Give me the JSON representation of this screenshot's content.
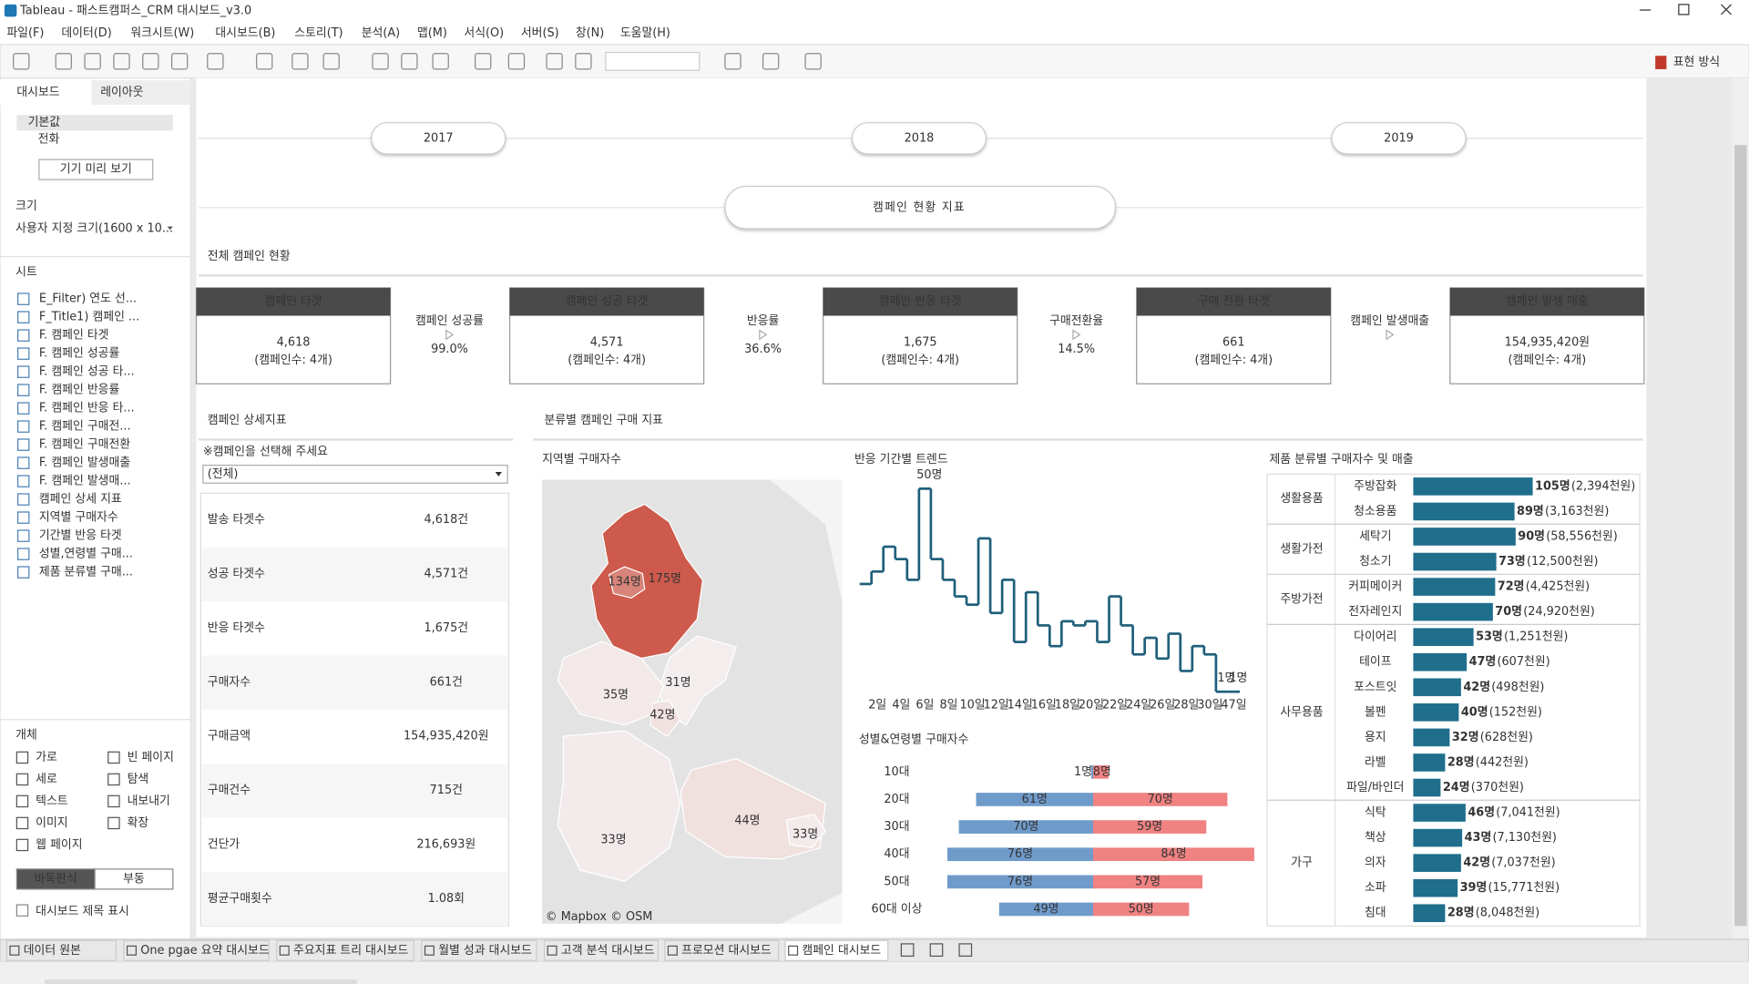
{
  "window": {
    "title": "Tableau - 패스트캠퍼스_CRM 대시보드_v3.0"
  },
  "menu": [
    "파일(F)",
    "데이터(D)",
    "워크시트(W)",
    "대시보드(B)",
    "스토리(T)",
    "분석(A)",
    "맵(M)",
    "서식(O)",
    "서버(S)",
    "창(N)",
    "도움말(H)"
  ],
  "toolbar": {
    "show_me": "표현 방식"
  },
  "sidebar": {
    "tabs": [
      "대시보드",
      "레이아웃"
    ],
    "devices": [
      "기본값",
      "전화"
    ],
    "preview_button": "기기 미리 보기",
    "size_label": "크기",
    "size_value": "사용자 지정 크기(1600 x 10...",
    "sheets_label": "시트",
    "sheets": [
      "E_Filter) 연도 선...",
      "F_Title1) 캠페인 ...",
      "F. 캠페인 타겟",
      "F. 캠페인 성공률",
      "F. 캠페인 성공 타...",
      "F. 캠페인 반응률",
      "F. 캠페인 반응 타...",
      "F. 캠페인 구매전...",
      "F. 캠페인 구매전환",
      "F. 캠페인 발생매출",
      "F. 캠페인 발생매...",
      "캠페인 상세 지표",
      "지역별 구매자수",
      "기간별 반응 타겟",
      "성별,연령별 구매...",
      "제품 분류별 구매..."
    ],
    "objects_label": "개체",
    "objects": [
      "가로",
      "빈 페이지",
      "세로",
      "탐색",
      "텍스트",
      "내보내기",
      "이미지",
      "확장",
      "웹 페이지"
    ],
    "layout_modes": [
      "바둑판식",
      "부동"
    ],
    "show_title": "대시보드 제목 표시"
  },
  "dashboard": {
    "years": [
      "2017",
      "2018",
      "2019"
    ],
    "title": "캠페인 현황 지표",
    "overview_title": "전체 캠페인 현황",
    "kpis": [
      {
        "title": "캠페인 타겟",
        "value": "4,618",
        "note": "(캠페인수: 4개)"
      },
      {
        "title": "캠페인 성공 타겟",
        "value": "4,571",
        "note": "(캠페인수: 4개)"
      },
      {
        "title": "캠페인 반응 타겟",
        "value": "1,675",
        "note": "(캠페인수: 4개)"
      },
      {
        "title": "구매 전환 타겟",
        "value": "661",
        "note": "(캠페인수: 4개)"
      },
      {
        "title": "캠페인 발생 매출",
        "value": "154,935,420원",
        "note": "(캠페인수: 4개)"
      }
    ],
    "rates": [
      {
        "label": "캠페인 성공률",
        "value": "99.0%"
      },
      {
        "label": "반응률",
        "value": "36.6%"
      },
      {
        "label": "구매전환율",
        "value": "14.5%"
      },
      {
        "label": "캠페인 발생매출"
      }
    ],
    "detail_title": "캠페인 상세지표",
    "detail_prompt": "※캠페인을 선택해 주세요",
    "detail_filter": "(전체)",
    "detail_rows": [
      [
        "발송 타겟수",
        "4,618건"
      ],
      [
        "성공 타겟수",
        "4,571건"
      ],
      [
        "반응 타겟수",
        "1,675건"
      ],
      [
        "구매자수",
        "661건"
      ],
      [
        "구매금액",
        "154,935,420원"
      ],
      [
        "구매건수",
        "715건"
      ],
      [
        "건단가",
        "216,693원"
      ],
      [
        "평균구매횟수",
        "1.08회"
      ]
    ],
    "purchase_title": "분류별 캠페인 구매 지표"
  },
  "chart_data": [
    {
      "type": "map",
      "title": "지역별 구매자수",
      "values": [
        134,
        175,
        31,
        35,
        42,
        44,
        33,
        33
      ],
      "value_labels": [
        "134명",
        "175명",
        "31명",
        "35명",
        "42명",
        "44명",
        "33명",
        "33명"
      ],
      "colors": [
        "#f4eded",
        "#cd5a4c"
      ],
      "credit": "© Mapbox © OSM"
    },
    {
      "type": "line",
      "title": "반응 기간별 트렌드",
      "color": "#1f5f7a",
      "categories": [
        null,
        "2일",
        null,
        "4일",
        null,
        "6일",
        null,
        "8일",
        null,
        "10일",
        null,
        "12일",
        null,
        "14일",
        null,
        "16일",
        null,
        "18일",
        null,
        "20일",
        null,
        "22일",
        null,
        "24일",
        null,
        "26일",
        null,
        "28일",
        null,
        "30일",
        null,
        "47일"
      ],
      "values": [
        27,
        30,
        36,
        33,
        28,
        50,
        33,
        28,
        24,
        22,
        38,
        20,
        28,
        13,
        25,
        17,
        12,
        18,
        17,
        18,
        13,
        24,
        17,
        10,
        14,
        9,
        15,
        6,
        12,
        10,
        1,
        1
      ],
      "value_labels": [
        null,
        null,
        null,
        null,
        null,
        "50명",
        null,
        null,
        null,
        null,
        null,
        null,
        null,
        null,
        null,
        null,
        null,
        null,
        null,
        null,
        null,
        null,
        null,
        null,
        null,
        null,
        null,
        null,
        null,
        null,
        "1명",
        "1명"
      ]
    },
    {
      "type": "diverging_bar",
      "title": "성별&연령별 구매자수",
      "categories": [
        "10대",
        "20대",
        "30대",
        "40대",
        "50대",
        "60대 이상"
      ],
      "series": [
        {
          "color": "#6f9bcb",
          "values": [
            1,
            61,
            70,
            76,
            76,
            49
          ],
          "value_labels": [
            "1명",
            "61명",
            "70명",
            "76명",
            "76명",
            "49명"
          ]
        },
        {
          "color": "#f08282",
          "values": [
            8,
            70,
            59,
            84,
            57,
            50
          ],
          "value_labels": [
            "8명",
            "70명",
            "59명",
            "84명",
            "57명",
            "50명"
          ]
        }
      ]
    },
    {
      "type": "bar",
      "title": "제품 분류별 구매자수 및 매출",
      "color": "#1f6e8c",
      "groups": [
        {
          "name": "생활용품",
          "categories": [
            "주방잡화",
            "청소용품"
          ],
          "values": [
            105,
            89
          ],
          "value_labels": [
            "105명",
            "89명"
          ],
          "revenue_labels": [
            "(2,394천원)",
            "(3,163천원)"
          ]
        },
        {
          "name": "생활가전",
          "categories": [
            "세탁기",
            "청소기"
          ],
          "values": [
            90,
            73
          ],
          "value_labels": [
            "90명",
            "73명"
          ],
          "revenue_labels": [
            "(58,556천원)",
            "(12,500천원)"
          ]
        },
        {
          "name": "주방가전",
          "categories": [
            "커피메이커",
            "전자레인지"
          ],
          "values": [
            72,
            70
          ],
          "value_labels": [
            "72명",
            "70명"
          ],
          "revenue_labels": [
            "(4,425천원)",
            "(24,920천원)"
          ]
        },
        {
          "name": "사무용품",
          "categories": [
            "다이어리",
            "테이프",
            "포스트잇",
            "볼펜",
            "용지",
            "라벨",
            "파일/바인더"
          ],
          "values": [
            53,
            47,
            42,
            40,
            32,
            28,
            24
          ],
          "value_labels": [
            "53명",
            "47명",
            "42명",
            "40명",
            "32명",
            "28명",
            "24명"
          ],
          "revenue_labels": [
            "(1,251천원)",
            "(607천원)",
            "(498천원)",
            "(152천원)",
            "(628천원)",
            "(442천원)",
            "(370천원)"
          ]
        },
        {
          "name": "가구",
          "categories": [
            "식탁",
            "책상",
            "의자",
            "소파",
            "침대"
          ],
          "values": [
            46,
            43,
            42,
            39,
            28
          ],
          "value_labels": [
            "46명",
            "43명",
            "42명",
            "39명",
            "28명"
          ],
          "revenue_labels": [
            "(7,041천원)",
            "(7,130천원)",
            "(7,037천원)",
            "(15,771천원)",
            "(8,048천원)"
          ]
        }
      ]
    }
  ],
  "sheet_tabs": [
    "데이터 원본",
    "One pgae 요약 대시보드",
    "주요지표 트리 대시보드",
    "월별 성과 대시보드",
    "고객 분석 대시보드",
    "프로모션 대시보드",
    "캠페인 대시보드"
  ]
}
